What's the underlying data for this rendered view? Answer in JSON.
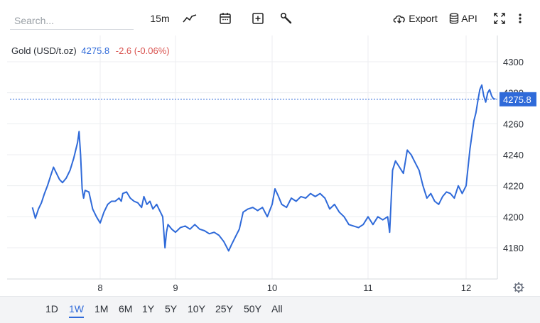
{
  "toolbar": {
    "search_placeholder": "Search...",
    "interval_label": "15m",
    "export_label": "Export",
    "api_label": "API"
  },
  "legend": {
    "symbol": "Gold (USD/t.oz)",
    "price": "4275.8",
    "change": "-2.6 (-0.06%)"
  },
  "chart_data": {
    "type": "line",
    "series": [
      {
        "color": "#2f6ad9",
        "points": [
          [
            7.1,
            4206
          ],
          [
            7.14,
            4199
          ],
          [
            7.18,
            4205
          ],
          [
            7.22,
            4209
          ],
          [
            7.26,
            4215
          ],
          [
            7.3,
            4220
          ],
          [
            7.34,
            4226
          ],
          [
            7.38,
            4232
          ],
          [
            7.42,
            4228
          ],
          [
            7.46,
            4224
          ],
          [
            7.5,
            4222
          ],
          [
            7.55,
            4225
          ],
          [
            7.6,
            4230
          ],
          [
            7.65,
            4238
          ],
          [
            7.7,
            4248
          ],
          [
            7.72,
            4255
          ],
          [
            7.74,
            4240
          ],
          [
            7.76,
            4218
          ],
          [
            7.78,
            4212
          ],
          [
            7.8,
            4217
          ],
          [
            7.85,
            4216
          ],
          [
            7.9,
            4205
          ],
          [
            7.95,
            4200
          ],
          [
            8.0,
            4196
          ],
          [
            8.05,
            4203
          ],
          [
            8.1,
            4208
          ],
          [
            8.15,
            4210
          ],
          [
            8.2,
            4210
          ],
          [
            8.25,
            4212
          ],
          [
            8.28,
            4210
          ],
          [
            8.3,
            4215
          ],
          [
            8.35,
            4216
          ],
          [
            8.4,
            4212
          ],
          [
            8.45,
            4210
          ],
          [
            8.5,
            4209
          ],
          [
            8.55,
            4206
          ],
          [
            8.58,
            4213
          ],
          [
            8.62,
            4208
          ],
          [
            8.66,
            4210
          ],
          [
            8.7,
            4205
          ],
          [
            8.75,
            4208
          ],
          [
            8.8,
            4203
          ],
          [
            8.83,
            4200
          ],
          [
            8.86,
            4180
          ],
          [
            8.88,
            4190
          ],
          [
            8.9,
            4195
          ],
          [
            8.95,
            4192
          ],
          [
            9.0,
            4190
          ],
          [
            9.05,
            4193
          ],
          [
            9.1,
            4194
          ],
          [
            9.15,
            4192
          ],
          [
            9.2,
            4195
          ],
          [
            9.25,
            4192
          ],
          [
            9.3,
            4191
          ],
          [
            9.35,
            4189
          ],
          [
            9.4,
            4190
          ],
          [
            9.45,
            4188
          ],
          [
            9.5,
            4184
          ],
          [
            9.55,
            4178
          ],
          [
            9.58,
            4182
          ],
          [
            9.62,
            4187
          ],
          [
            9.66,
            4192
          ],
          [
            9.7,
            4203
          ],
          [
            9.75,
            4205
          ],
          [
            9.8,
            4206
          ],
          [
            9.85,
            4204
          ],
          [
            9.9,
            4206
          ],
          [
            9.95,
            4200
          ],
          [
            10.0,
            4208
          ],
          [
            10.03,
            4218
          ],
          [
            10.06,
            4214
          ],
          [
            10.1,
            4208
          ],
          [
            10.15,
            4206
          ],
          [
            10.2,
            4212
          ],
          [
            10.25,
            4210
          ],
          [
            10.3,
            4213
          ],
          [
            10.35,
            4212
          ],
          [
            10.4,
            4215
          ],
          [
            10.45,
            4213
          ],
          [
            10.5,
            4215
          ],
          [
            10.55,
            4212
          ],
          [
            10.6,
            4205
          ],
          [
            10.65,
            4208
          ],
          [
            10.7,
            4203
          ],
          [
            10.75,
            4200
          ],
          [
            10.8,
            4195
          ],
          [
            10.85,
            4194
          ],
          [
            10.9,
            4193
          ],
          [
            10.95,
            4195
          ],
          [
            11.0,
            4200
          ],
          [
            11.05,
            4195
          ],
          [
            11.1,
            4200
          ],
          [
            11.15,
            4198
          ],
          [
            11.2,
            4200
          ],
          [
            11.22,
            4190
          ],
          [
            11.25,
            4230
          ],
          [
            11.28,
            4236
          ],
          [
            11.32,
            4232
          ],
          [
            11.36,
            4228
          ],
          [
            11.4,
            4243
          ],
          [
            11.44,
            4240
          ],
          [
            11.48,
            4235
          ],
          [
            11.52,
            4230
          ],
          [
            11.56,
            4220
          ],
          [
            11.6,
            4212
          ],
          [
            11.64,
            4215
          ],
          [
            11.68,
            4210
          ],
          [
            11.72,
            4208
          ],
          [
            11.76,
            4213
          ],
          [
            11.8,
            4216
          ],
          [
            11.84,
            4215
          ],
          [
            11.88,
            4212
          ],
          [
            11.92,
            4220
          ],
          [
            11.96,
            4215
          ],
          [
            12.0,
            4220
          ],
          [
            12.04,
            4244
          ],
          [
            12.08,
            4262
          ],
          [
            12.1,
            4267
          ],
          [
            12.12,
            4275
          ],
          [
            12.14,
            4282
          ],
          [
            12.16,
            4285
          ],
          [
            12.18,
            4278
          ],
          [
            12.2,
            4274
          ],
          [
            12.22,
            4280
          ],
          [
            12.24,
            4282
          ],
          [
            12.26,
            4278
          ],
          [
            12.28,
            4276
          ],
          [
            12.3,
            4276
          ]
        ]
      }
    ],
    "x_ticks": [
      "8",
      "9",
      "10",
      "11",
      "12"
    ],
    "y_ticks": [
      "4180",
      "4200",
      "4220",
      "4240",
      "4260",
      "4280",
      "4300"
    ],
    "xlim": [
      7.0,
      12.35
    ],
    "ylim": [
      4166,
      4306
    ],
    "last_value": "4275.8",
    "grid": true
  },
  "ranges": [
    "1D",
    "1W",
    "1M",
    "6M",
    "1Y",
    "5Y",
    "10Y",
    "25Y",
    "50Y",
    "All"
  ],
  "active_range": "1W"
}
